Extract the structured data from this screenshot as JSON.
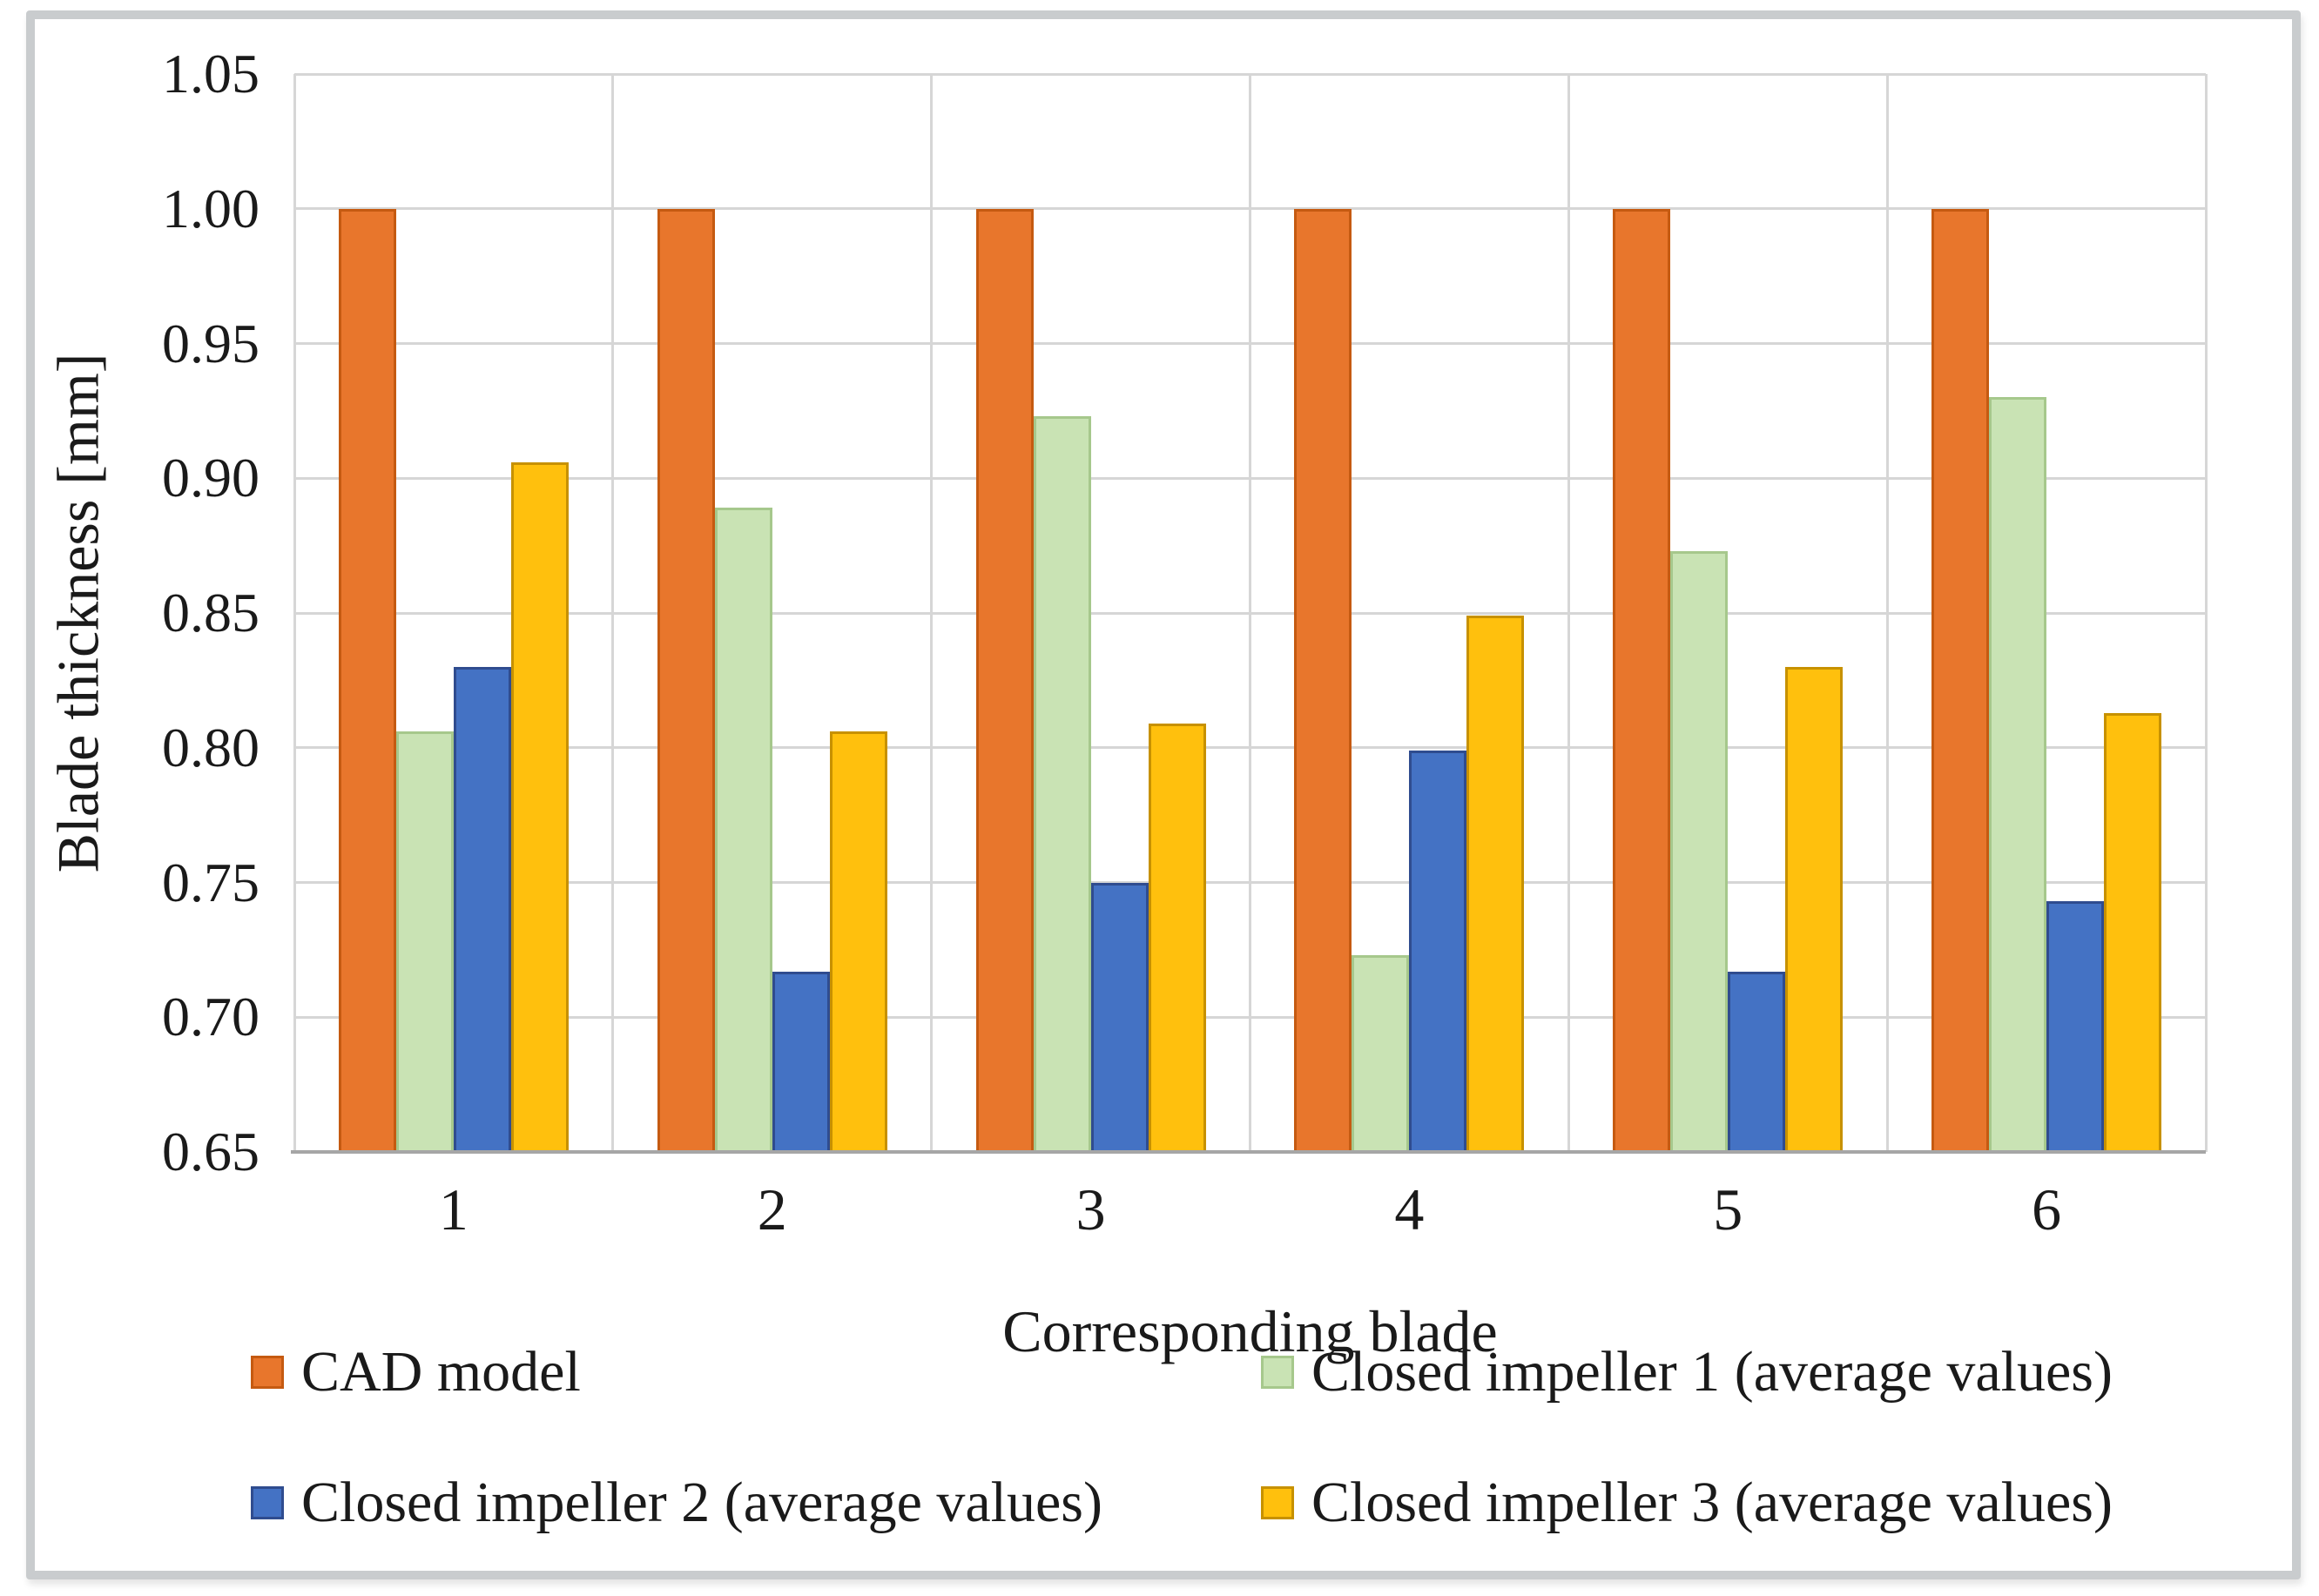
{
  "chart_data": {
    "type": "bar",
    "title": "",
    "xlabel": "Corresponding blade",
    "ylabel": "Blade thickness [mm]",
    "categories": [
      "1",
      "2",
      "3",
      "4",
      "5",
      "6"
    ],
    "series": [
      {
        "name": "CAD model",
        "color": "#E8762C",
        "border": "#C55A11",
        "values": [
          1.0,
          1.0,
          1.0,
          1.0,
          1.0,
          1.0
        ]
      },
      {
        "name": "Closed impeller 1 (average values)",
        "color": "#C9E3B4",
        "border": "#A6C88C",
        "values": [
          0.806,
          0.889,
          0.923,
          0.723,
          0.873,
          0.93
        ]
      },
      {
        "name": "Closed impeller 2 (average values)",
        "color": "#4472C4",
        "border": "#2F4C8F",
        "values": [
          0.83,
          0.717,
          0.75,
          0.799,
          0.717,
          0.743
        ]
      },
      {
        "name": "Closed impeller 3 (average values)",
        "color": "#FFC00D",
        "border": "#C79100",
        "values": [
          0.906,
          0.806,
          0.809,
          0.849,
          0.83,
          0.813
        ]
      }
    ],
    "ylim": [
      0.65,
      1.05
    ],
    "ytick_step": 0.05,
    "yticks": [
      "1.05",
      "1.00",
      "0.95",
      "0.90",
      "0.85",
      "0.80",
      "0.75",
      "0.70",
      "0.65"
    ],
    "grid": true,
    "legend_position": "bottom",
    "colors": {
      "gridline": "#D6D6D6",
      "axis_line": "#A6A6A6",
      "frame_border": "#C9CCCE"
    }
  }
}
